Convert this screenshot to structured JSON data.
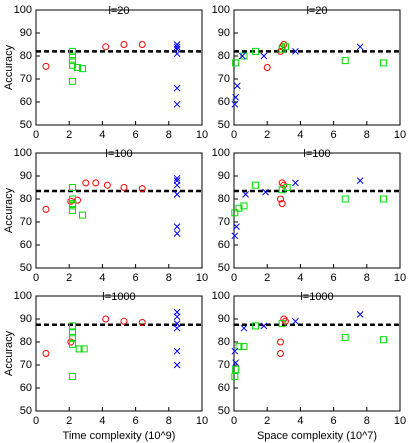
{
  "chart_data": [
    {
      "type": "scatter",
      "title": "l=20",
      "ylabel": "Accuracy",
      "xlim": [
        0,
        10
      ],
      "ylim": [
        50,
        100
      ],
      "xticks": [
        0,
        2,
        4,
        6,
        8,
        10
      ],
      "yticks": [
        50,
        60,
        70,
        80,
        90,
        100
      ],
      "hline": 82,
      "series": [
        {
          "color": "#ff0000",
          "marker": "circle",
          "x": [
            0.6,
            4.2,
            5.3,
            6.4
          ],
          "values": [
            75.5,
            84,
            85,
            85
          ]
        },
        {
          "color": "#00dd00",
          "marker": "square",
          "x": [
            2.2,
            2.2,
            2.2,
            2.2,
            2.2,
            2.5,
            2.8
          ],
          "values": [
            82,
            80,
            78,
            76,
            69,
            75,
            74.5
          ]
        },
        {
          "color": "#0000ff",
          "marker": "x",
          "x": [
            8.5,
            8.5,
            8.5,
            8.5,
            8.5,
            8.5
          ],
          "values": [
            85,
            84,
            83,
            81,
            66,
            59
          ]
        }
      ]
    },
    {
      "type": "scatter",
      "title": "l=20",
      "xlim": [
        0,
        10
      ],
      "ylim": [
        50,
        100
      ],
      "xticks": [
        0,
        2,
        4,
        6,
        8,
        10
      ],
      "yticks": [
        50,
        60,
        70,
        80,
        90,
        100
      ],
      "hline": 82,
      "series": [
        {
          "color": "#ff0000",
          "marker": "circle",
          "x": [
            2.0,
            2.9,
            3.0,
            2.8
          ],
          "values": [
            75,
            84,
            85,
            82
          ]
        },
        {
          "color": "#00dd00",
          "marker": "square",
          "x": [
            0.1,
            0.6,
            1.3,
            2.9,
            3.1,
            6.7,
            9.0
          ],
          "values": [
            77,
            80,
            82,
            83,
            84,
            78,
            77
          ]
        },
        {
          "color": "#0000ff",
          "marker": "x",
          "x": [
            0.05,
            0.1,
            0.2,
            0.5,
            1.8,
            3.7,
            7.6
          ],
          "values": [
            59,
            62,
            67,
            80,
            80,
            82,
            84
          ]
        }
      ]
    },
    {
      "type": "scatter",
      "title": "l=100",
      "ylabel": "Accuracy",
      "xlim": [
        0,
        10
      ],
      "ylim": [
        50,
        100
      ],
      "xticks": [
        0,
        2,
        4,
        6,
        8,
        10
      ],
      "yticks": [
        50,
        60,
        70,
        80,
        90,
        100
      ],
      "hline": 83.5,
      "series": [
        {
          "color": "#ff0000",
          "marker": "circle",
          "x": [
            0.6,
            2.1,
            2.5,
            3.0,
            3.6,
            4.3,
            5.3,
            6.4
          ],
          "values": [
            75.5,
            79,
            79.5,
            87,
            87,
            86,
            85,
            84.5
          ]
        },
        {
          "color": "#00dd00",
          "marker": "square",
          "x": [
            2.2,
            2.2,
            2.2,
            2.2,
            2.2,
            2.8
          ],
          "values": [
            85,
            80,
            78,
            75,
            77,
            73
          ]
        },
        {
          "color": "#0000ff",
          "marker": "x",
          "x": [
            8.5,
            8.5,
            8.5,
            8.5,
            8.5,
            8.5
          ],
          "values": [
            89,
            88,
            86,
            82,
            68,
            65
          ]
        }
      ]
    },
    {
      "type": "scatter",
      "title": "l=100",
      "xlim": [
        0,
        10
      ],
      "ylim": [
        50,
        100
      ],
      "xticks": [
        0,
        2,
        4,
        6,
        8,
        10
      ],
      "yticks": [
        50,
        60,
        70,
        80,
        90,
        100
      ],
      "hline": 83.5,
      "series": [
        {
          "color": "#ff0000",
          "marker": "circle",
          "x": [
            2.8,
            2.9,
            2.9,
            3.0
          ],
          "values": [
            80,
            78,
            87,
            86
          ]
        },
        {
          "color": "#00dd00",
          "marker": "square",
          "x": [
            0.05,
            0.3,
            0.6,
            1.3,
            2.9,
            3.2,
            6.7,
            9.0
          ],
          "values": [
            74,
            76,
            77,
            86,
            84,
            85,
            80,
            80
          ]
        },
        {
          "color": "#0000ff",
          "marker": "x",
          "x": [
            0.05,
            0.15,
            0.7,
            1.9,
            3.7,
            7.6
          ],
          "values": [
            64,
            68,
            82,
            83,
            87,
            88
          ]
        }
      ]
    },
    {
      "type": "scatter",
      "title": "l=1000",
      "ylabel": "Accuracy",
      "xlabel": "Time complexity (10^9)",
      "xlim": [
        0,
        10
      ],
      "ylim": [
        50,
        100
      ],
      "xticks": [
        0,
        2,
        4,
        6,
        8,
        10
      ],
      "yticks": [
        50,
        60,
        70,
        80,
        90,
        100
      ],
      "hline": 87.5,
      "series": [
        {
          "color": "#ff0000",
          "marker": "circle",
          "x": [
            0.6,
            2.1,
            4.2,
            5.3,
            6.4
          ],
          "values": [
            75,
            80,
            90,
            89,
            88.5
          ]
        },
        {
          "color": "#00dd00",
          "marker": "square",
          "x": [
            2.2,
            2.2,
            2.2,
            2.2,
            2.2,
            2.6,
            2.9
          ],
          "values": [
            87,
            84,
            82,
            79,
            65,
            77,
            77
          ]
        },
        {
          "color": "#0000ff",
          "marker": "x",
          "x": [
            8.5,
            8.5,
            8.5,
            8.5,
            8.5,
            8.5
          ],
          "values": [
            93,
            91,
            88,
            86,
            76,
            70
          ]
        }
      ]
    },
    {
      "type": "scatter",
      "title": "l=1000",
      "xlabel": "Space complexity (10^7)",
      "xlim": [
        0,
        10
      ],
      "ylim": [
        50,
        100
      ],
      "xticks": [
        0,
        2,
        4,
        6,
        8,
        10
      ],
      "yticks": [
        50,
        60,
        70,
        80,
        90,
        100
      ],
      "hline": 87.5,
      "series": [
        {
          "color": "#ff0000",
          "marker": "circle",
          "x": [
            2.8,
            2.8,
            3.0,
            3.1
          ],
          "values": [
            80,
            75,
            90,
            89
          ]
        },
        {
          "color": "#00dd00",
          "marker": "square",
          "x": [
            0.05,
            0.1,
            0.3,
            0.6,
            1.3,
            2.9,
            6.7,
            9.0
          ],
          "values": [
            65,
            68,
            78,
            78,
            87,
            88,
            82,
            81
          ]
        },
        {
          "color": "#0000ff",
          "marker": "x",
          "x": [
            0.05,
            0.1,
            0.6,
            1.8,
            3.7,
            7.6
          ],
          "values": [
            76,
            71,
            86,
            87,
            89,
            92
          ]
        }
      ]
    }
  ]
}
